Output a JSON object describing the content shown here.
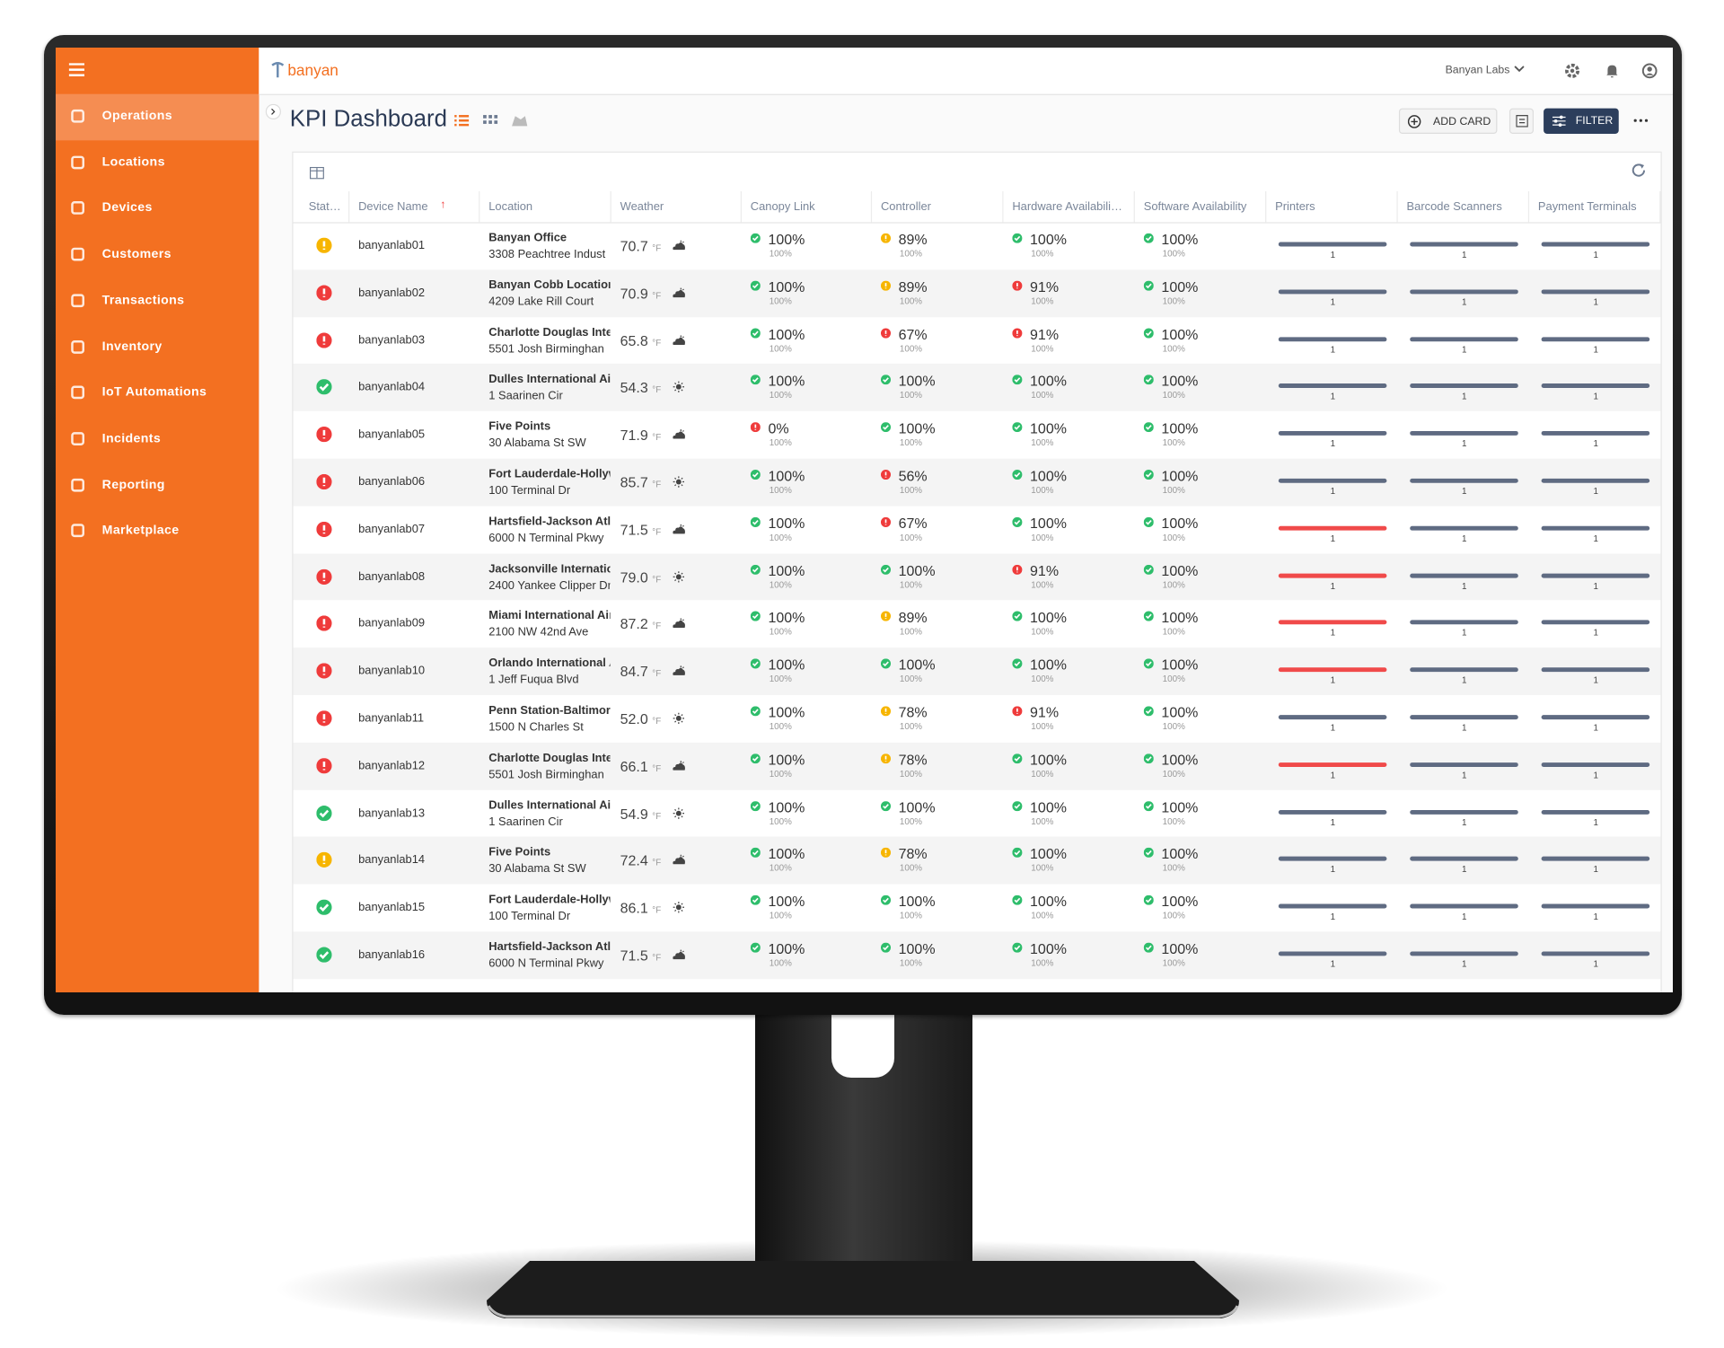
{
  "sidebar": {
    "items": [
      "Operations",
      "Locations",
      "Devices",
      "Customers",
      "Transactions",
      "Inventory",
      "IoT Automations",
      "Incidents",
      "Reporting",
      "Marketplace"
    ],
    "active": 0
  },
  "header": {
    "brand": "banyan",
    "account": "Banyan Labs"
  },
  "page": {
    "title": "KPI Dashboard",
    "add_card": "ADD CARD",
    "filter": "FILTER"
  },
  "table": {
    "columns": [
      "Stat…",
      "Device Name",
      "Location",
      "Weather",
      "Canopy Link",
      "Controller",
      "Hardware Availabili…",
      "Software Availability",
      "Printers",
      "Barcode Scanners",
      "Payment Terminals"
    ],
    "temp_unit": "°F",
    "rows": [
      {
        "s": "warning",
        "device": "banyanlab01",
        "location": "Banyan Office",
        "address": "3308 Peachtree Indust",
        "temp": "70.7",
        "weather": "cloudy",
        "kpi": [
          {
            "s": "ok",
            "v": "100%",
            "sub": "100%"
          },
          {
            "s": "warning",
            "v": "89%",
            "sub": "100%"
          },
          {
            "s": "ok",
            "v": "100%",
            "sub": "100%"
          },
          {
            "s": "ok",
            "v": "100%",
            "sub": "100%"
          }
        ],
        "bars": [
          {
            "s": "ok",
            "n": "1"
          },
          {
            "s": "ok",
            "n": "1"
          },
          {
            "s": "ok",
            "n": "1"
          }
        ]
      },
      {
        "s": "error",
        "device": "banyanlab02",
        "location": "Banyan Cobb Location",
        "address": "4209 Lake Rill Court",
        "temp": "70.9",
        "weather": "cloudy",
        "kpi": [
          {
            "s": "ok",
            "v": "100%",
            "sub": "100%"
          },
          {
            "s": "warning",
            "v": "89%",
            "sub": "100%"
          },
          {
            "s": "error",
            "v": "91%",
            "sub": "100%"
          },
          {
            "s": "ok",
            "v": "100%",
            "sub": "100%"
          }
        ],
        "bars": [
          {
            "s": "ok",
            "n": "1"
          },
          {
            "s": "ok",
            "n": "1"
          },
          {
            "s": "ok",
            "n": "1"
          }
        ]
      },
      {
        "s": "error",
        "device": "banyanlab03",
        "location": "Charlotte Douglas Inte",
        "address": "5501 Josh Birminghan",
        "temp": "65.8",
        "weather": "cloudy",
        "kpi": [
          {
            "s": "ok",
            "v": "100%",
            "sub": "100%"
          },
          {
            "s": "error",
            "v": "67%",
            "sub": "100%"
          },
          {
            "s": "error",
            "v": "91%",
            "sub": "100%"
          },
          {
            "s": "ok",
            "v": "100%",
            "sub": "100%"
          }
        ],
        "bars": [
          {
            "s": "ok",
            "n": "1"
          },
          {
            "s": "ok",
            "n": "1"
          },
          {
            "s": "ok",
            "n": "1"
          }
        ]
      },
      {
        "s": "ok",
        "device": "banyanlab04",
        "location": "Dulles International Air",
        "address": "1 Saarinen Cir",
        "temp": "54.3",
        "weather": "sunny",
        "kpi": [
          {
            "s": "ok",
            "v": "100%",
            "sub": "100%"
          },
          {
            "s": "ok",
            "v": "100%",
            "sub": "100%"
          },
          {
            "s": "ok",
            "v": "100%",
            "sub": "100%"
          },
          {
            "s": "ok",
            "v": "100%",
            "sub": "100%"
          }
        ],
        "bars": [
          {
            "s": "ok",
            "n": "1"
          },
          {
            "s": "ok",
            "n": "1"
          },
          {
            "s": "ok",
            "n": "1"
          }
        ]
      },
      {
        "s": "error",
        "device": "banyanlab05",
        "location": "Five Points",
        "address": "30 Alabama St SW",
        "temp": "71.9",
        "weather": "cloudy",
        "kpi": [
          {
            "s": "error",
            "v": "0%",
            "sub": "100%"
          },
          {
            "s": "ok",
            "v": "100%",
            "sub": "100%"
          },
          {
            "s": "ok",
            "v": "100%",
            "sub": "100%"
          },
          {
            "s": "ok",
            "v": "100%",
            "sub": "100%"
          }
        ],
        "bars": [
          {
            "s": "ok",
            "n": "1"
          },
          {
            "s": "ok",
            "n": "1"
          },
          {
            "s": "ok",
            "n": "1"
          }
        ]
      },
      {
        "s": "error",
        "device": "banyanlab06",
        "location": "Fort Lauderdale-Hollyw",
        "address": "100 Terminal Dr",
        "temp": "85.7",
        "weather": "sunny",
        "kpi": [
          {
            "s": "ok",
            "v": "100%",
            "sub": "100%"
          },
          {
            "s": "error",
            "v": "56%",
            "sub": "100%"
          },
          {
            "s": "ok",
            "v": "100%",
            "sub": "100%"
          },
          {
            "s": "ok",
            "v": "100%",
            "sub": "100%"
          }
        ],
        "bars": [
          {
            "s": "ok",
            "n": "1"
          },
          {
            "s": "ok",
            "n": "1"
          },
          {
            "s": "ok",
            "n": "1"
          }
        ]
      },
      {
        "s": "error",
        "device": "banyanlab07",
        "location": "Hartsfield-Jackson Atl",
        "address": "6000 N Terminal Pkwy",
        "temp": "71.5",
        "weather": "cloudy",
        "kpi": [
          {
            "s": "ok",
            "v": "100%",
            "sub": "100%"
          },
          {
            "s": "error",
            "v": "67%",
            "sub": "100%"
          },
          {
            "s": "ok",
            "v": "100%",
            "sub": "100%"
          },
          {
            "s": "ok",
            "v": "100%",
            "sub": "100%"
          }
        ],
        "bars": [
          {
            "s": "error",
            "n": "1"
          },
          {
            "s": "ok",
            "n": "1"
          },
          {
            "s": "ok",
            "n": "1"
          }
        ]
      },
      {
        "s": "error",
        "device": "banyanlab08",
        "location": "Jacksonville Internatio",
        "address": "2400 Yankee Clipper Dr",
        "temp": "79.0",
        "weather": "sunny",
        "kpi": [
          {
            "s": "ok",
            "v": "100%",
            "sub": "100%"
          },
          {
            "s": "ok",
            "v": "100%",
            "sub": "100%"
          },
          {
            "s": "error",
            "v": "91%",
            "sub": "100%"
          },
          {
            "s": "ok",
            "v": "100%",
            "sub": "100%"
          }
        ],
        "bars": [
          {
            "s": "error",
            "n": "1"
          },
          {
            "s": "ok",
            "n": "1"
          },
          {
            "s": "ok",
            "n": "1"
          }
        ]
      },
      {
        "s": "error",
        "device": "banyanlab09",
        "location": "Miami International Air",
        "address": "2100 NW 42nd Ave",
        "temp": "87.2",
        "weather": "cloudy",
        "kpi": [
          {
            "s": "ok",
            "v": "100%",
            "sub": "100%"
          },
          {
            "s": "warning",
            "v": "89%",
            "sub": "100%"
          },
          {
            "s": "ok",
            "v": "100%",
            "sub": "100%"
          },
          {
            "s": "ok",
            "v": "100%",
            "sub": "100%"
          }
        ],
        "bars": [
          {
            "s": "error",
            "n": "1"
          },
          {
            "s": "ok",
            "n": "1"
          },
          {
            "s": "ok",
            "n": "1"
          }
        ]
      },
      {
        "s": "error",
        "device": "banyanlab10",
        "location": "Orlando International A",
        "address": "1 Jeff Fuqua Blvd",
        "temp": "84.7",
        "weather": "cloudy",
        "kpi": [
          {
            "s": "ok",
            "v": "100%",
            "sub": "100%"
          },
          {
            "s": "ok",
            "v": "100%",
            "sub": "100%"
          },
          {
            "s": "ok",
            "v": "100%",
            "sub": "100%"
          },
          {
            "s": "ok",
            "v": "100%",
            "sub": "100%"
          }
        ],
        "bars": [
          {
            "s": "error",
            "n": "1"
          },
          {
            "s": "ok",
            "n": "1"
          },
          {
            "s": "ok",
            "n": "1"
          }
        ]
      },
      {
        "s": "error",
        "device": "banyanlab11",
        "location": "Penn Station-Baltimore",
        "address": "1500 N Charles St",
        "temp": "52.0",
        "weather": "sunny",
        "kpi": [
          {
            "s": "ok",
            "v": "100%",
            "sub": "100%"
          },
          {
            "s": "warning",
            "v": "78%",
            "sub": "100%"
          },
          {
            "s": "error",
            "v": "91%",
            "sub": "100%"
          },
          {
            "s": "ok",
            "v": "100%",
            "sub": "100%"
          }
        ],
        "bars": [
          {
            "s": "ok",
            "n": "1"
          },
          {
            "s": "ok",
            "n": "1"
          },
          {
            "s": "ok",
            "n": "1"
          }
        ]
      },
      {
        "s": "error",
        "device": "banyanlab12",
        "location": "Charlotte Douglas Inte",
        "address": "5501 Josh Birminghan",
        "temp": "66.1",
        "weather": "cloudy",
        "kpi": [
          {
            "s": "ok",
            "v": "100%",
            "sub": "100%"
          },
          {
            "s": "warning",
            "v": "78%",
            "sub": "100%"
          },
          {
            "s": "ok",
            "v": "100%",
            "sub": "100%"
          },
          {
            "s": "ok",
            "v": "100%",
            "sub": "100%"
          }
        ],
        "bars": [
          {
            "s": "error",
            "n": "1"
          },
          {
            "s": "ok",
            "n": "1"
          },
          {
            "s": "ok",
            "n": "1"
          }
        ]
      },
      {
        "s": "ok",
        "device": "banyanlab13",
        "location": "Dulles International Air",
        "address": "1 Saarinen Cir",
        "temp": "54.9",
        "weather": "sunny",
        "kpi": [
          {
            "s": "ok",
            "v": "100%",
            "sub": "100%"
          },
          {
            "s": "ok",
            "v": "100%",
            "sub": "100%"
          },
          {
            "s": "ok",
            "v": "100%",
            "sub": "100%"
          },
          {
            "s": "ok",
            "v": "100%",
            "sub": "100%"
          }
        ],
        "bars": [
          {
            "s": "ok",
            "n": "1"
          },
          {
            "s": "ok",
            "n": "1"
          },
          {
            "s": "ok",
            "n": "1"
          }
        ]
      },
      {
        "s": "warning",
        "device": "banyanlab14",
        "location": "Five Points",
        "address": "30 Alabama St SW",
        "temp": "72.4",
        "weather": "cloudy",
        "kpi": [
          {
            "s": "ok",
            "v": "100%",
            "sub": "100%"
          },
          {
            "s": "warning",
            "v": "78%",
            "sub": "100%"
          },
          {
            "s": "ok",
            "v": "100%",
            "sub": "100%"
          },
          {
            "s": "ok",
            "v": "100%",
            "sub": "100%"
          }
        ],
        "bars": [
          {
            "s": "ok",
            "n": "1"
          },
          {
            "s": "ok",
            "n": "1"
          },
          {
            "s": "ok",
            "n": "1"
          }
        ]
      },
      {
        "s": "ok",
        "device": "banyanlab15",
        "location": "Fort Lauderdale-Hollyw",
        "address": "100 Terminal Dr",
        "temp": "86.1",
        "weather": "sunny",
        "kpi": [
          {
            "s": "ok",
            "v": "100%",
            "sub": "100%"
          },
          {
            "s": "ok",
            "v": "100%",
            "sub": "100%"
          },
          {
            "s": "ok",
            "v": "100%",
            "sub": "100%"
          },
          {
            "s": "ok",
            "v": "100%",
            "sub": "100%"
          }
        ],
        "bars": [
          {
            "s": "ok",
            "n": "1"
          },
          {
            "s": "ok",
            "n": "1"
          },
          {
            "s": "ok",
            "n": "1"
          }
        ]
      },
      {
        "s": "ok",
        "device": "banyanlab16",
        "location": "Hartsfield-Jackson Atl",
        "address": "6000 N Terminal Pkwy",
        "temp": "71.5",
        "weather": "cloudy",
        "kpi": [
          {
            "s": "ok",
            "v": "100%",
            "sub": "100%"
          },
          {
            "s": "ok",
            "v": "100%",
            "sub": "100%"
          },
          {
            "s": "ok",
            "v": "100%",
            "sub": "100%"
          },
          {
            "s": "ok",
            "v": "100%",
            "sub": "100%"
          }
        ],
        "bars": [
          {
            "s": "ok",
            "n": "1"
          },
          {
            "s": "ok",
            "n": "1"
          },
          {
            "s": "ok",
            "n": "1"
          }
        ]
      }
    ]
  }
}
